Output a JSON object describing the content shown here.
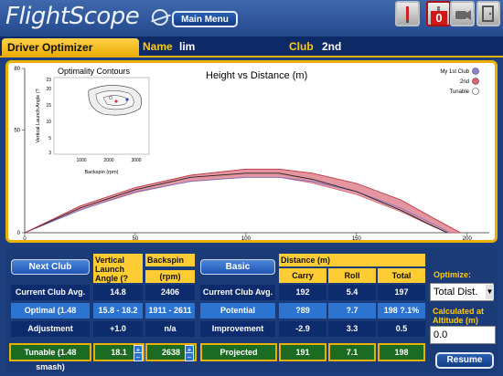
{
  "app": {
    "logo": "FlightScope",
    "main_menu": "Main Menu"
  },
  "header": {
    "mode": "Driver Optimizer",
    "name_label": "Name",
    "name_value": "lim",
    "club_label": "Club",
    "club_value": "2nd"
  },
  "chart": {
    "title": "Height vs Distance (m)",
    "inset_title": "Optimality Contours",
    "inset_ylabel": "Vertical Launch Angle (?",
    "inset_xlabel": "Backspin (rpm)",
    "inset_yticks": [
      "23",
      "20",
      "15",
      "10",
      "5",
      "3"
    ],
    "inset_xticks": [
      "1000",
      "2000",
      "3000"
    ],
    "legend": [
      {
        "label": "My 1st Club",
        "color": "#8a83d4"
      },
      {
        "label": "2nd",
        "color": "#e06070"
      },
      {
        "label": "Tunable",
        "color": "#ffffff"
      }
    ],
    "colors": {
      "band_fill": "#e58a92",
      "band_stroke": "#c23a48",
      "trace": "#222222",
      "lavender": "#d8d4ee"
    }
  },
  "chart_data": {
    "type": "line",
    "xlabel": "",
    "ylabel": "",
    "xlim": [
      0,
      210
    ],
    "ylim": [
      0,
      80
    ],
    "xticks": [
      "0",
      "50",
      "100",
      "150",
      "200"
    ],
    "yticks": [
      "0",
      "50",
      "80"
    ],
    "series": [
      {
        "name": "2nd",
        "x": [
          0,
          25,
          50,
          75,
          100,
          115,
          130,
          150,
          170,
          185,
          197
        ],
        "y": [
          0,
          13,
          22,
          28,
          31,
          31,
          29,
          24,
          16,
          7,
          0
        ]
      },
      {
        "name": "My 1st Club",
        "x": [
          0,
          25,
          50,
          75,
          100,
          115,
          130,
          150,
          170,
          185,
          192
        ],
        "y": [
          0,
          11,
          20,
          25,
          27,
          27,
          25,
          20,
          12,
          4,
          0
        ]
      },
      {
        "name": "Tunable",
        "x": [
          0,
          25,
          50,
          75,
          100,
          115,
          130,
          150,
          170,
          185,
          191
        ],
        "y": [
          0,
          12,
          21,
          27,
          29,
          29,
          26,
          20,
          11,
          3,
          0
        ]
      }
    ]
  },
  "left_table": {
    "next_club": "Next Club",
    "col1": "Vertical Launch Angle (?",
    "col2_top": "Backspin",
    "col2_unit": "(rpm)",
    "rows": [
      {
        "label": "Current Club Avg.",
        "v1": "14.8",
        "v2": "2406"
      },
      {
        "label": "Optimal (1.48 smash)",
        "v1": "15.8 - 18.2",
        "v2": "1911 - 2611"
      },
      {
        "label": "Adjustment",
        "v1": "+1.0",
        "v2": "n/a"
      }
    ],
    "tunable": {
      "label": "Tunable (1.48 smash)",
      "v1": "18.1",
      "v2": "2638"
    }
  },
  "right_table": {
    "basic": "Basic",
    "distance_header": "Distance (m)",
    "cols": [
      "Carry",
      "Roll",
      "Total"
    ],
    "rows": [
      {
        "label": "Current Club Avg.",
        "c": "192",
        "r": "5.4",
        "t": "197"
      },
      {
        "label": "Potential",
        "c": "?89",
        "r": "?.7",
        "t": "198 ?.1%"
      },
      {
        "label": "Improvement",
        "c": "-2.9",
        "r": "3.3",
        "t": "0.5"
      }
    ],
    "projected": {
      "label": "Projected",
      "c": "191",
      "r": "7.1",
      "t": "198"
    }
  },
  "side": {
    "optimize_label": "Optimize:",
    "optimize_value": "Total Dist.",
    "altitude_label": "Calculated at Altitude (m)",
    "altitude_value": "0.0",
    "resume": "Resume"
  }
}
